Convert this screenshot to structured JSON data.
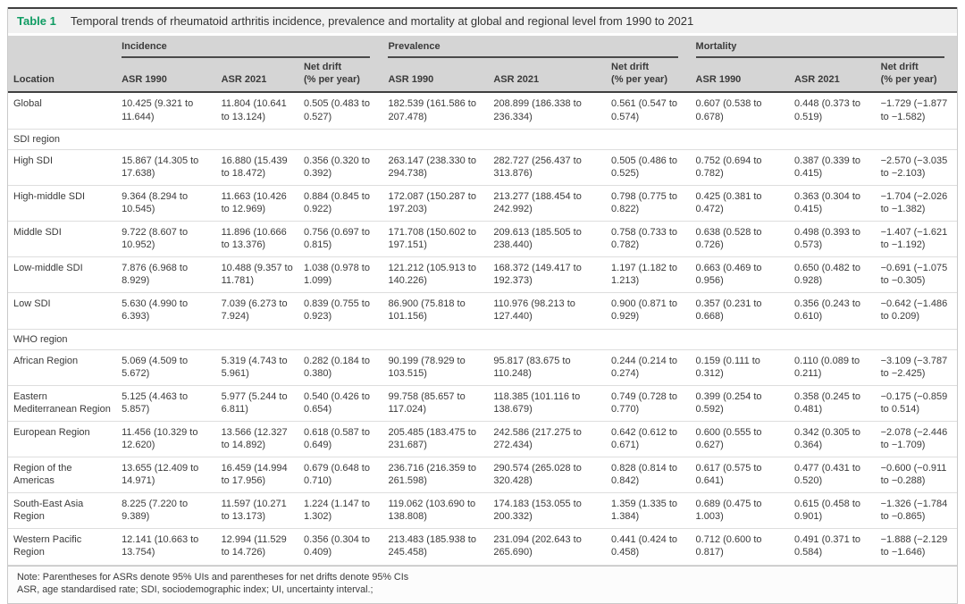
{
  "caption": {
    "label": "Table 1",
    "text": "Temporal trends of rheumatoid arthritis incidence, prevalence and mortality at global and regional level from 1990 to 2021"
  },
  "colors": {
    "accent_green": "#0f9c63",
    "caption_bg": "#f1f1f1",
    "header_bg": "#d5d5d5",
    "header_rule": "#3f3f3f"
  },
  "table": {
    "location_header": "Location",
    "groups": [
      {
        "name": "Incidence",
        "cols": [
          "ASR 1990",
          "ASR 2021",
          "Net drift\n(% per year)"
        ]
      },
      {
        "name": "Prevalence",
        "cols": [
          "ASR 1990",
          "ASR 2021",
          "Net drift\n(% per year)"
        ]
      },
      {
        "name": "Mortality",
        "cols": [
          "ASR 1990",
          "ASR 2021",
          "Net drift\n(% per year)"
        ]
      }
    ],
    "rows": [
      {
        "location": "Global",
        "incidence": {
          "asr_1990": "10.425 (9.321 to 11.644)",
          "asr_2021": "11.804 (10.641 to 13.124)",
          "net_drift": "0.505 (0.483 to 0.527)"
        },
        "prevalence": {
          "asr_1990": "182.539 (161.586 to 207.478)",
          "asr_2021": "208.899 (186.338 to 236.334)",
          "net_drift": "0.561 (0.547 to 0.574)"
        },
        "mortality": {
          "asr_1990": "0.607 (0.538 to 0.678)",
          "asr_2021": "0.448 (0.373 to 0.519)",
          "net_drift": "−1.729 (−1.877 to −1.582)"
        }
      },
      {
        "section": "SDI region"
      },
      {
        "location": "High SDI",
        "incidence": {
          "asr_1990": "15.867 (14.305 to 17.638)",
          "asr_2021": "16.880 (15.439 to 18.472)",
          "net_drift": "0.356 (0.320 to 0.392)"
        },
        "prevalence": {
          "asr_1990": "263.147 (238.330 to 294.738)",
          "asr_2021": "282.727 (256.437 to 313.876)",
          "net_drift": "0.505 (0.486 to 0.525)"
        },
        "mortality": {
          "asr_1990": "0.752 (0.694 to 0.782)",
          "asr_2021": "0.387 (0.339 to 0.415)",
          "net_drift": "−2.570 (−3.035 to −2.103)"
        }
      },
      {
        "location": "High-middle SDI",
        "incidence": {
          "asr_1990": "9.364 (8.294 to 10.545)",
          "asr_2021": "11.663 (10.426 to 12.969)",
          "net_drift": "0.884 (0.845 to 0.922)"
        },
        "prevalence": {
          "asr_1990": "172.087 (150.287 to 197.203)",
          "asr_2021": "213.277 (188.454 to 242.992)",
          "net_drift": "0.798 (0.775 to 0.822)"
        },
        "mortality": {
          "asr_1990": "0.425 (0.381 to 0.472)",
          "asr_2021": "0.363 (0.304 to 0.415)",
          "net_drift": "−1.704 (−2.026 to −1.382)"
        }
      },
      {
        "location": "Middle SDI",
        "incidence": {
          "asr_1990": "9.722 (8.607 to 10.952)",
          "asr_2021": "11.896 (10.666 to 13.376)",
          "net_drift": "0.756 (0.697 to 0.815)"
        },
        "prevalence": {
          "asr_1990": "171.708 (150.602 to 197.151)",
          "asr_2021": "209.613 (185.505 to 238.440)",
          "net_drift": "0.758 (0.733 to 0.782)"
        },
        "mortality": {
          "asr_1990": "0.638 (0.528 to 0.726)",
          "asr_2021": "0.498 (0.393 to 0.573)",
          "net_drift": "−1.407 (−1.621 to −1.192)"
        }
      },
      {
        "location": "Low-middle SDI",
        "incidence": {
          "asr_1990": "7.876 (6.968 to 8.929)",
          "asr_2021": "10.488 (9.357 to 11.781)",
          "net_drift": "1.038 (0.978 to 1.099)"
        },
        "prevalence": {
          "asr_1990": "121.212 (105.913 to 140.226)",
          "asr_2021": "168.372 (149.417 to 192.373)",
          "net_drift": "1.197 (1.182 to 1.213)"
        },
        "mortality": {
          "asr_1990": "0.663 (0.469 to 0.956)",
          "asr_2021": "0.650 (0.482 to 0.928)",
          "net_drift": "−0.691 (−1.075 to −0.305)"
        }
      },
      {
        "location": "Low SDI",
        "incidence": {
          "asr_1990": "5.630 (4.990 to 6.393)",
          "asr_2021": "7.039 (6.273 to 7.924)",
          "net_drift": "0.839 (0.755 to 0.923)"
        },
        "prevalence": {
          "asr_1990": "86.900 (75.818 to 101.156)",
          "asr_2021": "110.976 (98.213 to 127.440)",
          "net_drift": "0.900 (0.871 to 0.929)"
        },
        "mortality": {
          "asr_1990": "0.357 (0.231 to 0.668)",
          "asr_2021": "0.356 (0.243 to 0.610)",
          "net_drift": "−0.642 (−1.486 to 0.209)"
        }
      },
      {
        "section": "WHO region"
      },
      {
        "location": "African Region",
        "incidence": {
          "asr_1990": "5.069 (4.509 to 5.672)",
          "asr_2021": "5.319 (4.743 to 5.961)",
          "net_drift": "0.282 (0.184 to 0.380)"
        },
        "prevalence": {
          "asr_1990": "90.199 (78.929 to 103.515)",
          "asr_2021": "95.817 (83.675 to 110.248)",
          "net_drift": "0.244 (0.214 to 0.274)"
        },
        "mortality": {
          "asr_1990": "0.159 (0.111 to 0.312)",
          "asr_2021": "0.110 (0.089 to 0.211)",
          "net_drift": "−3.109 (−3.787 to −2.425)"
        }
      },
      {
        "location": "Eastern Mediterranean Region",
        "incidence": {
          "asr_1990": "5.125 (4.463 to 5.857)",
          "asr_2021": "5.977 (5.244 to 6.811)",
          "net_drift": "0.540 (0.426 to 0.654)"
        },
        "prevalence": {
          "asr_1990": "99.758 (85.657 to 117.024)",
          "asr_2021": "118.385 (101.116 to 138.679)",
          "net_drift": "0.749 (0.728 to 0.770)"
        },
        "mortality": {
          "asr_1990": "0.399 (0.254 to 0.592)",
          "asr_2021": "0.358 (0.245 to 0.481)",
          "net_drift": "−0.175 (−0.859 to 0.514)"
        }
      },
      {
        "location": "European Region",
        "incidence": {
          "asr_1990": "11.456 (10.329 to 12.620)",
          "asr_2021": "13.566 (12.327 to 14.892)",
          "net_drift": "0.618 (0.587 to 0.649)"
        },
        "prevalence": {
          "asr_1990": "205.485 (183.475 to 231.687)",
          "asr_2021": "242.586 (217.275 to 272.434)",
          "net_drift": "0.642 (0.612 to 0.671)"
        },
        "mortality": {
          "asr_1990": "0.600 (0.555 to 0.627)",
          "asr_2021": "0.342 (0.305 to 0.364)",
          "net_drift": "−2.078 (−2.446 to −1.709)"
        }
      },
      {
        "location": "Region of the Americas",
        "incidence": {
          "asr_1990": "13.655 (12.409 to 14.971)",
          "asr_2021": "16.459 (14.994 to 17.956)",
          "net_drift": "0.679 (0.648 to 0.710)"
        },
        "prevalence": {
          "asr_1990": "236.716 (216.359 to 261.598)",
          "asr_2021": "290.574 (265.028 to 320.428)",
          "net_drift": "0.828 (0.814 to 0.842)"
        },
        "mortality": {
          "asr_1990": "0.617 (0.575 to 0.641)",
          "asr_2021": "0.477 (0.431 to 0.520)",
          "net_drift": "−0.600 (−0.911 to −0.288)"
        }
      },
      {
        "location": "South-East Asia Region",
        "incidence": {
          "asr_1990": "8.225 (7.220 to 9.389)",
          "asr_2021": "11.597 (10.271 to 13.173)",
          "net_drift": "1.224 (1.147 to 1.302)"
        },
        "prevalence": {
          "asr_1990": "119.062 (103.690 to 138.808)",
          "asr_2021": "174.183 (153.055 to 200.332)",
          "net_drift": "1.359 (1.335 to 1.384)"
        },
        "mortality": {
          "asr_1990": "0.689 (0.475 to 1.003)",
          "asr_2021": "0.615 (0.458 to 0.901)",
          "net_drift": "−1.326 (−1.784 to −0.865)"
        }
      },
      {
        "location": "Western Pacific Region",
        "incidence": {
          "asr_1990": "12.141 (10.663 to 13.754)",
          "asr_2021": "12.994 (11.529 to 14.726)",
          "net_drift": "0.356 (0.304 to 0.409)"
        },
        "prevalence": {
          "asr_1990": "213.483 (185.938 to 245.458)",
          "asr_2021": "231.094 (202.643 to 265.690)",
          "net_drift": "0.441 (0.424 to 0.458)"
        },
        "mortality": {
          "asr_1990": "0.712 (0.600 to 0.817)",
          "asr_2021": "0.491 (0.371 to 0.584)",
          "net_drift": "−1.888 (−2.129 to −1.646)"
        }
      }
    ]
  },
  "notes": {
    "line1": "Note: Parentheses for ASRs denote 95% UIs and parentheses for net drifts denote 95% CIs",
    "line2": "ASR, age standardised rate; SDI, sociodemographic index; UI, uncertainty interval.;"
  }
}
